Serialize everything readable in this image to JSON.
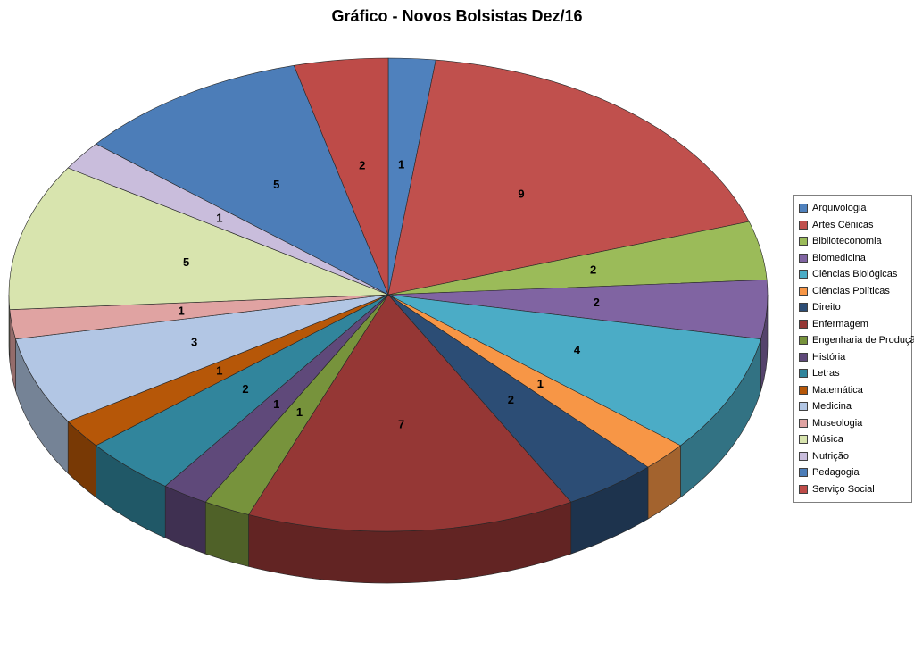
{
  "title": "Gráfico - Novos Bolsistas Dez/16",
  "chart_data": {
    "type": "pie",
    "style": "3d",
    "title": "Gráfico - Novos Bolsistas Dez/16",
    "legend_position": "right",
    "direction": "clockwise",
    "start_angle_deg": 0,
    "labels_show_values": true,
    "total": 50,
    "series": [
      {
        "name": "Arquivologia",
        "value": 1,
        "color": "#4F81BD"
      },
      {
        "name": "Artes Cênicas",
        "value": 9,
        "color": "#C0504D"
      },
      {
        "name": "Biblioteconomia",
        "value": 2,
        "color": "#9BBB59"
      },
      {
        "name": "Biomedicina",
        "value": 2,
        "color": "#8064A2"
      },
      {
        "name": "Ciências Biológicas",
        "value": 4,
        "color": "#4BACC6"
      },
      {
        "name": "Ciências Políticas",
        "value": 1,
        "color": "#F79646"
      },
      {
        "name": "Direito",
        "value": 2,
        "color": "#2C4D75"
      },
      {
        "name": "Enfermagem",
        "value": 7,
        "color": "#953735"
      },
      {
        "name": "Engenharia de Produção",
        "value": 1,
        "color": "#77933C"
      },
      {
        "name": "História",
        "value": 1,
        "color": "#5F497A"
      },
      {
        "name": "Letras",
        "value": 2,
        "color": "#31859C"
      },
      {
        "name": "Matemática",
        "value": 1,
        "color": "#B65708"
      },
      {
        "name": "Medicina",
        "value": 3,
        "color": "#B2C6E4"
      },
      {
        "name": "Museologia",
        "value": 1,
        "color": "#E0A3A2"
      },
      {
        "name": "Música",
        "value": 5,
        "color": "#D8E4AE"
      },
      {
        "name": "Nutrição",
        "value": 1,
        "color": "#C9BDDC"
      },
      {
        "name": "Pedagogia",
        "value": 5,
        "color": "#4C7DB8"
      },
      {
        "name": "Serviço Social",
        "value": 2,
        "color": "#BE4B48"
      }
    ]
  }
}
